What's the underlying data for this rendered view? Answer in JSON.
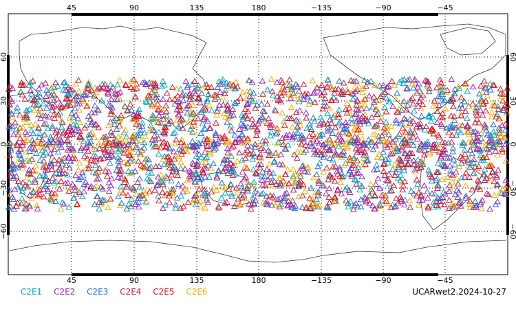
{
  "map": {
    "projection": "cylindrical equidistant",
    "lon_range": [
      0,
      360
    ],
    "lat_range": [
      -90,
      90
    ],
    "top_lon_ticks": [
      "45",
      "90",
      "135",
      "180",
      "−135",
      "−90",
      "−45"
    ],
    "bottom_lon_ticks": [
      "45",
      "90",
      "135",
      "180",
      "−135",
      "−90",
      "−45"
    ],
    "left_lat_ticks": [
      "60",
      "30",
      "0",
      "−30",
      "−60"
    ],
    "right_lat_ticks": [
      "60",
      "30",
      "0",
      "−30",
      "−60"
    ],
    "grid": "dotted",
    "marker_shape": "open triangle"
  },
  "legend": {
    "items": [
      {
        "label": "C2E1",
        "color": "#00a8c8"
      },
      {
        "label": "C2E2",
        "color": "#9a22c8"
      },
      {
        "label": "C2E3",
        "color": "#1e6ed8"
      },
      {
        "label": "C2E4",
        "color": "#c81e3c"
      },
      {
        "label": "C2E5",
        "color": "#e01010"
      },
      {
        "label": "C2E6",
        "color": "#f0b000"
      }
    ]
  },
  "stamp": "UCARwet2.2024-10-27",
  "chart_data": {
    "type": "scatter",
    "description_of_marks": "dense observation locations between about 45S and 45N, all longitudes",
    "lat_band": [
      -45,
      45
    ],
    "series": [
      {
        "name": "C2E1",
        "color": "#00a8c8"
      },
      {
        "name": "C2E2",
        "color": "#9a22c8"
      },
      {
        "name": "C2E3",
        "color": "#1e6ed8"
      },
      {
        "name": "C2E4",
        "color": "#c81e3c"
      },
      {
        "name": "C2E5",
        "color": "#e01010"
      },
      {
        "name": "C2E6",
        "color": "#f0b000"
      }
    ]
  }
}
